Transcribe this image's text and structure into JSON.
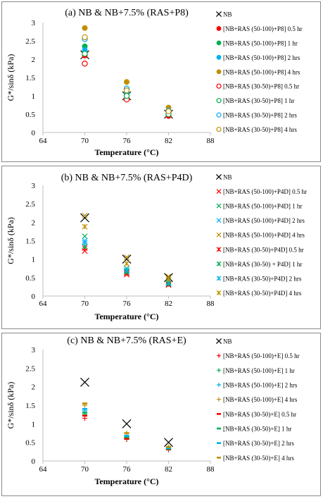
{
  "chart_data": [
    {
      "type": "scatter",
      "title": "(a) NB & NB+7.5% (RAS+P8)",
      "xlabel": "Temperature (°C)",
      "ylabel": "G*/sinδ (kPa)",
      "xlim": [
        64,
        88
      ],
      "ylim": [
        0,
        3
      ],
      "xticks": [
        "64",
        "70",
        "76",
        "82",
        "88"
      ],
      "yticks": [
        "0",
        "0.5",
        "1",
        "1.5",
        "2",
        "2.5",
        "3"
      ],
      "x": [
        70,
        76,
        82
      ],
      "legend_position": "right",
      "series": [
        {
          "name": "NB",
          "marker": "x",
          "color": "#000000",
          "values": [
            2.12,
            1.0,
            0.5
          ]
        },
        {
          "name": "[NB+RAS (50-100)+P8] 0.5 hr",
          "marker": "circle",
          "color": "#ff0000",
          "values": [
            2.1,
            0.92,
            0.45
          ]
        },
        {
          "name": "[NB+RAS (50-100)+P8] 1 hr",
          "marker": "circle",
          "color": "#00b050",
          "values": [
            2.35,
            1.05,
            0.55
          ]
        },
        {
          "name": "[NB+RAS (50-100)+P8] 2 hrs",
          "marker": "circle",
          "color": "#00b0f0",
          "values": [
            2.25,
            1.1,
            0.55
          ]
        },
        {
          "name": "[NB+RAS (50-100)+P8] 4 hrs",
          "marker": "circle",
          "color": "#bf8f00",
          "values": [
            2.85,
            1.38,
            0.68
          ]
        },
        {
          "name": "[NB+RAS (30-50)+P8] 0.5 hr",
          "marker": "circle-open",
          "color": "#ff0000",
          "values": [
            1.88,
            0.9,
            0.48
          ]
        },
        {
          "name": "[NB+RAS (30-50)+P8] 1 hr",
          "marker": "circle-open",
          "color": "#00b050",
          "values": [
            2.15,
            1.0,
            0.5
          ]
        },
        {
          "name": "[NB+RAS (30-50)+P8] 2 hrs",
          "marker": "circle-open",
          "color": "#00b0f0",
          "values": [
            2.55,
            1.2,
            0.6
          ]
        },
        {
          "name": "[NB+RAS (30-50)+P8] 4 hrs",
          "marker": "circle-open",
          "color": "#bf8f00",
          "values": [
            2.6,
            1.15,
            0.58
          ]
        }
      ]
    },
    {
      "type": "scatter",
      "title": "(b) NB & NB+7.5% (RAS+P4D)",
      "xlabel": "Temperature (°C)",
      "ylabel": "G*/sinδ (kPa)",
      "xlim": [
        64,
        88
      ],
      "ylim": [
        0,
        3
      ],
      "xticks": [
        "64",
        "70",
        "76",
        "82",
        "88"
      ],
      "yticks": [
        "0",
        "0.5",
        "1",
        "1.5",
        "2",
        "2.5",
        "3"
      ],
      "x": [
        70,
        76,
        82
      ],
      "legend_position": "right",
      "series": [
        {
          "name": "NB",
          "marker": "x",
          "color": "#000000",
          "values": [
            2.12,
            1.0,
            0.5
          ]
        },
        {
          "name": "[NB+RAS (50-100)+P4D] 0.5 hr",
          "marker": "x",
          "color": "#ff0000",
          "values": [
            1.22,
            0.58,
            0.3
          ]
        },
        {
          "name": "[NB+RAS (50-100)+P4D] 1 hr",
          "marker": "x",
          "color": "#00b050",
          "values": [
            1.62,
            0.75,
            0.38
          ]
        },
        {
          "name": "[NB+RAS (50-100)+P4D] 2 hrs",
          "marker": "x",
          "color": "#00b0f0",
          "values": [
            1.5,
            0.68,
            0.34
          ]
        },
        {
          "name": "[NB+RAS (50-100)+P4D] 4 hrs",
          "marker": "x",
          "color": "#bf8f00",
          "values": [
            2.18,
            1.05,
            0.53
          ]
        },
        {
          "name": "[NB+RAS (30-50)+P4D] 0.5 hr",
          "marker": "asterisk",
          "color": "#ff0000",
          "values": [
            1.3,
            0.62,
            0.32
          ]
        },
        {
          "name": "[NB+RAS (30-50) + P4D] 1 hr",
          "marker": "asterisk",
          "color": "#00b050",
          "values": [
            1.35,
            0.65,
            0.33
          ]
        },
        {
          "name": "[NB+RAS (30-50)+P4D] 2 hrs",
          "marker": "asterisk",
          "color": "#00b0f0",
          "values": [
            1.45,
            0.7,
            0.35
          ]
        },
        {
          "name": "[NB+RAS (30-50)+P4D] 4 hrs",
          "marker": "asterisk",
          "color": "#bf8f00",
          "values": [
            1.88,
            0.88,
            0.45
          ]
        }
      ]
    },
    {
      "type": "scatter",
      "title": "(c) NB & NB+7.5% (RAS+E)",
      "xlabel": "Temperature (°C)",
      "ylabel": "G*/sinδ (kPa)",
      "xlim": [
        64,
        88
      ],
      "ylim": [
        0,
        3
      ],
      "xticks": [
        "64",
        "70",
        "76",
        "82",
        "88"
      ],
      "yticks": [
        "0",
        "0.5",
        "1",
        "1.5",
        "2",
        "2.5",
        "3"
      ],
      "x": [
        70,
        76,
        82
      ],
      "legend_position": "right",
      "series": [
        {
          "name": "NB",
          "marker": "x",
          "color": "#000000",
          "values": [
            2.12,
            1.0,
            0.5
          ]
        },
        {
          "name": "[NB+RAS (50-100)+E] 0.5 hr",
          "marker": "plus",
          "color": "#ff0000",
          "values": [
            1.15,
            0.58,
            0.3
          ]
        },
        {
          "name": "[NB+RAS (50-100)+E] 1 hr",
          "marker": "plus",
          "color": "#00b050",
          "values": [
            1.25,
            0.62,
            0.32
          ]
        },
        {
          "name": "[NB+RAS (50-100)+E] 2 hrs",
          "marker": "plus",
          "color": "#00b0f0",
          "values": [
            1.35,
            0.66,
            0.34
          ]
        },
        {
          "name": "[NB+RAS (50-100)+E] 4 hrs",
          "marker": "plus",
          "color": "#bf8f00",
          "values": [
            1.5,
            0.75,
            0.38
          ]
        },
        {
          "name": "[NB+RAS (30-50)+E] 0.5 hr",
          "marker": "dash",
          "color": "#ff0000",
          "values": [
            1.22,
            0.6,
            0.31
          ]
        },
        {
          "name": "[NB+RAS (30-50)+E] 1 hr",
          "marker": "dash",
          "color": "#00b050",
          "values": [
            1.3,
            0.64,
            0.33
          ]
        },
        {
          "name": "[NB+RAS (30-50)+E] 2 hrs",
          "marker": "dash",
          "color": "#00b0f0",
          "values": [
            1.4,
            0.68,
            0.35
          ]
        },
        {
          "name": "[NB+RAS (30-50)+E] 4 hrs",
          "marker": "dash",
          "color": "#bf8f00",
          "values": [
            1.55,
            0.75,
            0.38
          ]
        }
      ]
    }
  ]
}
